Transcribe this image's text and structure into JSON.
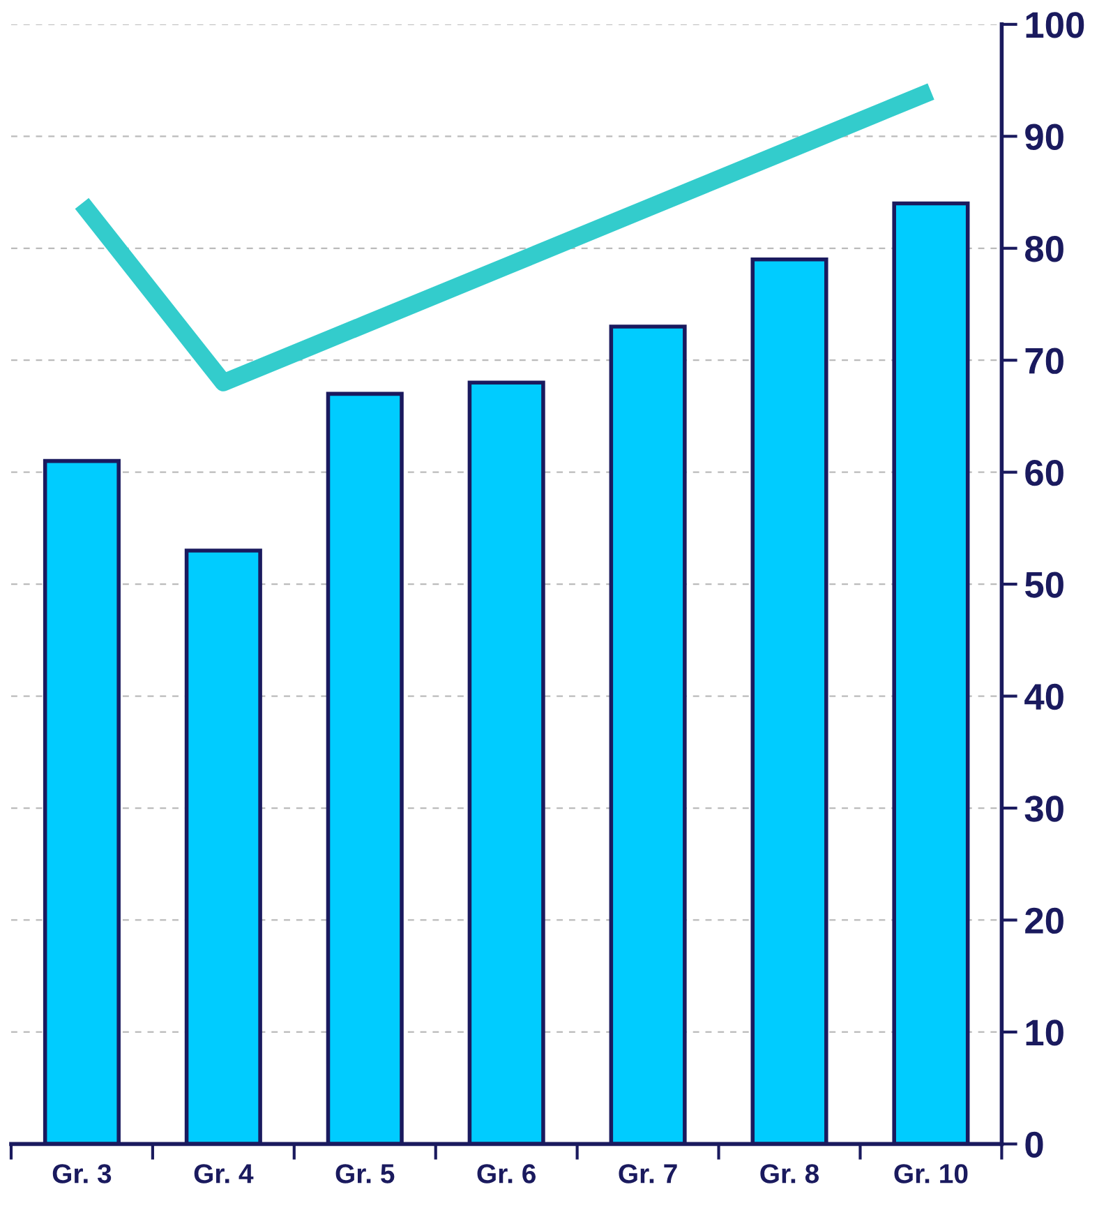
{
  "chart_data": {
    "type": "bar",
    "categories": [
      "Gr. 3",
      "Gr. 4",
      "Gr. 5",
      "Gr. 6",
      "Gr. 7",
      "Gr. 8",
      "Gr. 10"
    ],
    "series": [
      {
        "color": "#00ccff",
        "values": [
          61,
          53,
          67,
          68,
          73,
          79,
          84
        ]
      },
      {
        "type": "line",
        "color": "#33cccc",
        "values": [
          84,
          68,
          73.2,
          78.4,
          83.6,
          88.8,
          94
        ]
      }
    ],
    "ylim": [
      0,
      100
    ],
    "yticks": [
      0,
      10,
      20,
      30,
      40,
      50,
      60,
      70,
      80,
      90,
      100
    ],
    "grid": "y"
  }
}
